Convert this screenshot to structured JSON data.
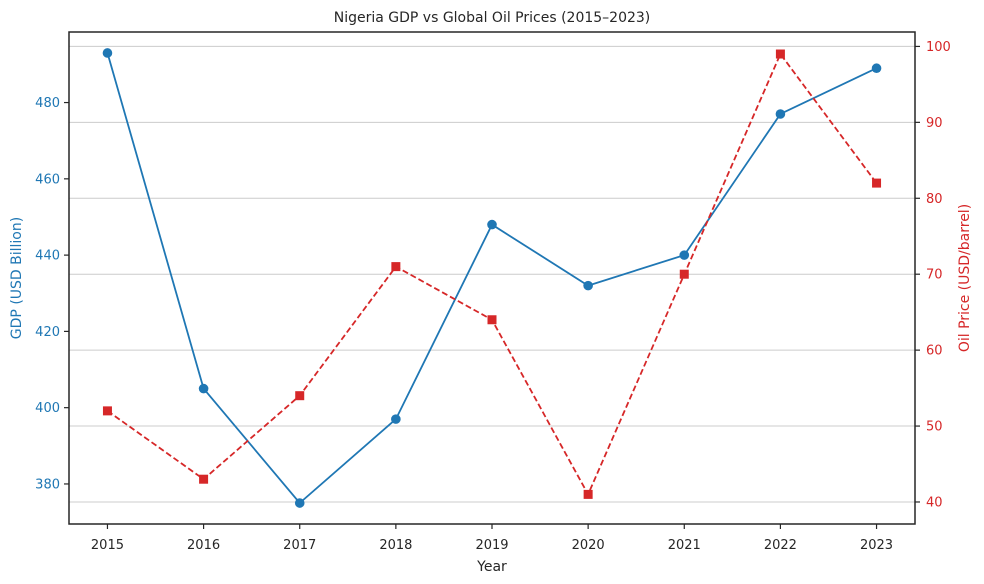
{
  "chart_data": {
    "type": "line",
    "title": "Nigeria GDP vs Global Oil Prices (2015–2023)",
    "xlabel": "Year",
    "ylabel_left": "GDP (USD Billion)",
    "ylabel_right": "Oil Price (USD/barrel)",
    "categories": [
      "2015",
      "2016",
      "2017",
      "2018",
      "2019",
      "2020",
      "2021",
      "2022",
      "2023"
    ],
    "y_left_ticks": [
      "380",
      "400",
      "420",
      "440",
      "460",
      "480"
    ],
    "y_right_ticks": [
      "40",
      "50",
      "60",
      "70",
      "80",
      "90",
      "100"
    ],
    "y_left_range": [
      369.5,
      498.5
    ],
    "y_right_range": [
      37.1,
      101.9
    ],
    "grid": true,
    "grid_axis": "right",
    "series": [
      {
        "axis": "left",
        "color": "#1f77b4",
        "line_style": "solid",
        "marker": "circle",
        "values": [
          493,
          405,
          375,
          397,
          448,
          432,
          440,
          477,
          489
        ]
      },
      {
        "axis": "right",
        "color": "#d62728",
        "line_style": "dashed",
        "marker": "square",
        "values": [
          52,
          43,
          54,
          71,
          64,
          41,
          70,
          99,
          82
        ]
      }
    ],
    "colors": {
      "left_axis": "#1f77b4",
      "right_axis": "#d62728",
      "grid": "#cccccc",
      "frame": "#262626",
      "text": "#262626"
    }
  }
}
